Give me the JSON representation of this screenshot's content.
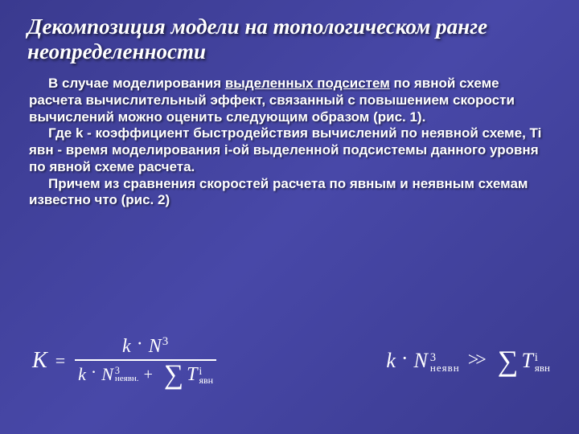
{
  "colors": {
    "background_gradient": [
      "#3a3a8f",
      "#4848a8",
      "#3a3a8f"
    ],
    "text": "#ffffff",
    "shadow": "rgba(0,0,0,0.6)"
  },
  "title": {
    "text": "Декомпозиция модели на топологическом ранге неопределенности",
    "font_style": "italic bold",
    "font_size_pt": 20
  },
  "body": {
    "font_family": "Arial",
    "font_size_pt": 13,
    "font_weight": "bold",
    "paragraph1_a": "В случае моделирования ",
    "paragraph1_u": "выделенных подсистем",
    "paragraph1_b": " по явной схеме расчета вычислительный эффект, связанный с повышением скорости вычислений можно оценить следующим образом (рис. 1).",
    "paragraph2": "Где k - коэффициент быстродействия вычислений по неявной схеме, Ti явн - время моделирования i-ой выделенной подсистемы  данного уровня по явной схеме расчета.",
    "paragraph3": "Причем из сравнения скоростей расчета по явным и неявным схемам известно что (рис. 2)"
  },
  "formula_left": {
    "K": "K",
    "equals": "=",
    "numerator": {
      "k": "k",
      "dot": "·",
      "N": "N",
      "sup": "3"
    },
    "denominator": {
      "k": "k",
      "dot": "·",
      "N": "N",
      "N_sup": "3",
      "N_sub": "неявн.",
      "plus": "+",
      "sigma": "∑",
      "T": "T",
      "T_sup": "i",
      "T_sub": "явн"
    }
  },
  "formula_right": {
    "lhs": {
      "k": "k",
      "dot": "·",
      "N": "N",
      "N_sup": "3",
      "N_sub": "неявн"
    },
    "operator": ">>",
    "rhs": {
      "sigma": "∑",
      "T": "T",
      "T_sup": "i",
      "T_sub": "явн"
    }
  }
}
